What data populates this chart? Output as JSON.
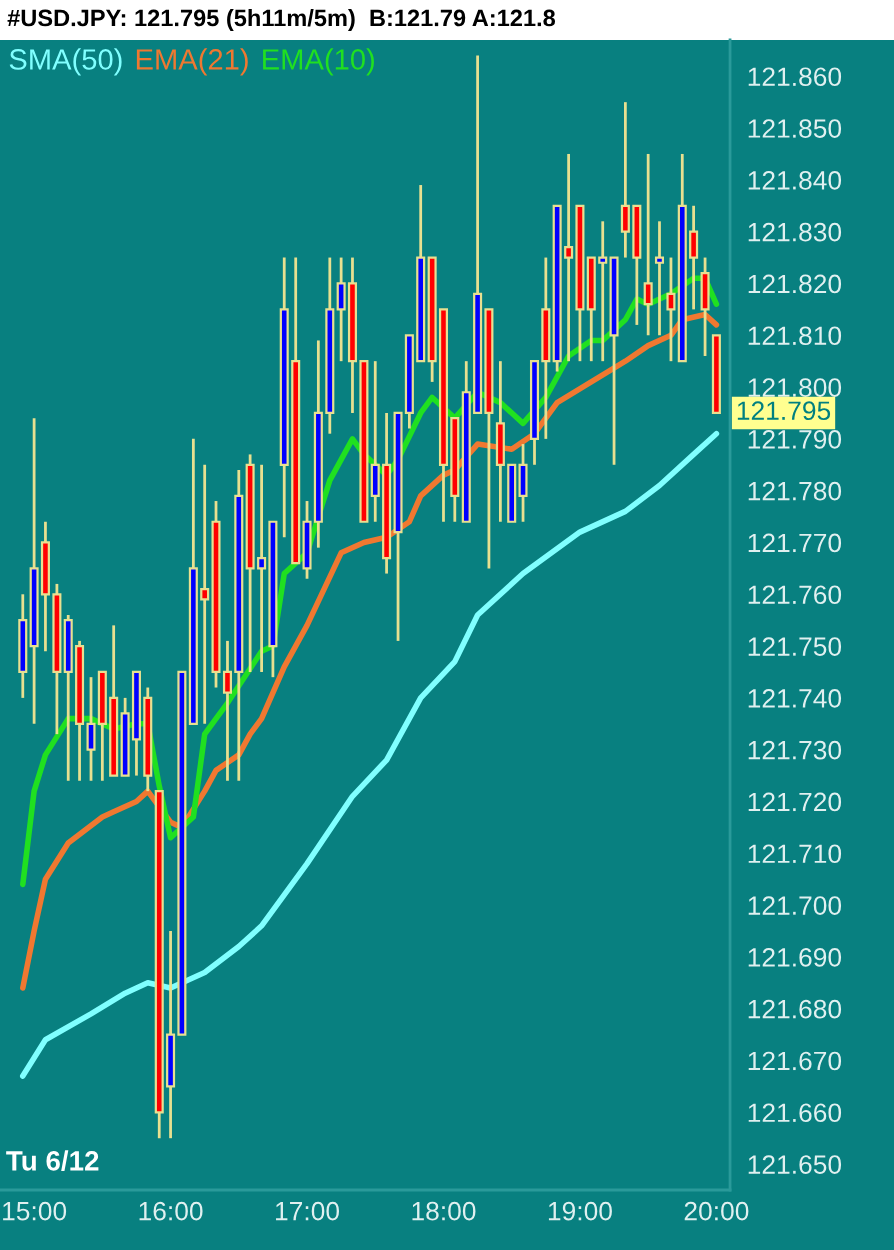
{
  "chart_data": {
    "type": "candlestick",
    "title": "#USD.JPY: 121.795 (5h11m/5m)  B:121.79 A:121.8",
    "x": [
      14.917,
      15.0,
      15.083,
      15.167,
      15.25,
      15.333,
      15.417,
      15.5,
      15.583,
      15.667,
      15.75,
      15.833,
      15.917,
      16.0,
      16.083,
      16.167,
      16.25,
      16.333,
      16.417,
      16.5,
      16.583,
      16.667,
      16.75,
      16.833,
      16.917,
      17.0,
      17.083,
      17.167,
      17.25,
      17.333,
      17.417,
      17.5,
      17.583,
      17.667,
      17.75,
      17.833,
      17.917,
      18.0,
      18.083,
      18.167,
      18.25,
      18.333,
      18.417,
      18.5,
      18.583,
      18.667,
      18.75,
      18.833,
      18.917,
      19.0,
      19.083,
      19.167,
      19.25,
      19.333,
      19.417,
      19.5,
      19.583,
      19.667,
      19.75,
      19.833,
      19.917,
      20.0
    ],
    "ohlc": [
      [
        121.745,
        121.76,
        121.74,
        121.755
      ],
      [
        121.75,
        121.794,
        121.735,
        121.765
      ],
      [
        121.77,
        121.774,
        121.749,
        121.76
      ],
      [
        121.76,
        121.762,
        121.733,
        121.745
      ],
      [
        121.745,
        121.756,
        121.724,
        121.755
      ],
      [
        121.75,
        121.751,
        121.724,
        121.735
      ],
      [
        121.73,
        121.744,
        121.724,
        121.735
      ],
      [
        121.745,
        121.745,
        121.724,
        121.735
      ],
      [
        121.74,
        121.754,
        121.725,
        121.725
      ],
      [
        121.725,
        121.74,
        121.725,
        121.737
      ],
      [
        121.732,
        121.745,
        121.725,
        121.745
      ],
      [
        121.74,
        121.742,
        121.722,
        121.725
      ],
      [
        121.722,
        121.722,
        121.655,
        121.66
      ],
      [
        121.665,
        121.695,
        121.655,
        121.675
      ],
      [
        121.675,
        121.745,
        121.675,
        121.745
      ],
      [
        121.735,
        121.79,
        121.735,
        121.765
      ],
      [
        121.761,
        121.785,
        121.735,
        121.759
      ],
      [
        121.774,
        121.778,
        121.742,
        121.745
      ],
      [
        121.745,
        121.751,
        121.724,
        121.741
      ],
      [
        121.745,
        121.784,
        121.724,
        121.779
      ],
      [
        121.785,
        121.787,
        121.745,
        121.765
      ],
      [
        121.765,
        121.785,
        121.745,
        121.767
      ],
      [
        121.75,
        121.774,
        121.744,
        121.774
      ],
      [
        121.785,
        121.825,
        121.771,
        121.815
      ],
      [
        121.805,
        121.825,
        121.766,
        121.766
      ],
      [
        121.765,
        121.778,
        121.763,
        121.774
      ],
      [
        121.774,
        121.809,
        121.769,
        121.795
      ],
      [
        121.795,
        121.825,
        121.791,
        121.815
      ],
      [
        121.815,
        121.825,
        121.805,
        121.82
      ],
      [
        121.82,
        121.825,
        121.795,
        121.805
      ],
      [
        121.805,
        121.805,
        121.774,
        121.774
      ],
      [
        121.779,
        121.805,
        121.774,
        121.785
      ],
      [
        121.785,
        121.795,
        121.764,
        121.767
      ],
      [
        121.772,
        121.795,
        121.751,
        121.795
      ],
      [
        121.795,
        121.81,
        121.792,
        121.81
      ],
      [
        121.805,
        121.839,
        121.805,
        121.825
      ],
      [
        121.825,
        121.825,
        121.801,
        121.805
      ],
      [
        121.815,
        121.815,
        121.774,
        121.785
      ],
      [
        121.794,
        121.794,
        121.774,
        121.779
      ],
      [
        121.774,
        121.805,
        121.774,
        121.799
      ],
      [
        121.795,
        121.864,
        121.795,
        121.818
      ],
      [
        121.815,
        121.815,
        121.765,
        121.795
      ],
      [
        121.793,
        121.805,
        121.774,
        121.785
      ],
      [
        121.774,
        121.785,
        121.774,
        121.785
      ],
      [
        121.779,
        121.789,
        121.774,
        121.785
      ],
      [
        121.79,
        121.805,
        121.785,
        121.805
      ],
      [
        121.815,
        121.825,
        121.79,
        121.805
      ],
      [
        121.805,
        121.835,
        121.803,
        121.835
      ],
      [
        121.827,
        121.845,
        121.805,
        121.825
      ],
      [
        121.835,
        121.835,
        121.805,
        121.815
      ],
      [
        121.825,
        121.825,
        121.805,
        121.815
      ],
      [
        121.824,
        121.832,
        121.805,
        121.825
      ],
      [
        121.81,
        121.825,
        121.785,
        121.825
      ],
      [
        121.835,
        121.855,
        121.825,
        121.83
      ],
      [
        121.835,
        121.835,
        121.812,
        121.825
      ],
      [
        121.82,
        121.845,
        121.81,
        121.816
      ],
      [
        121.824,
        121.832,
        121.81,
        121.825
      ],
      [
        121.818,
        121.825,
        121.805,
        121.815
      ],
      [
        121.805,
        121.845,
        121.805,
        121.835
      ],
      [
        121.83,
        121.835,
        121.815,
        121.825
      ],
      [
        121.822,
        121.825,
        121.806,
        121.815
      ],
      [
        121.81,
        121.81,
        121.795,
        121.795
      ]
    ],
    "colors": [
      "#0000ff",
      "#0000ff",
      "#ff0000",
      "#ff0000",
      "#0000ff",
      "#ff0000",
      "#0000ff",
      "#ff0000",
      "#ff0000",
      "#0000ff",
      "#0000ff",
      "#ff0000",
      "#ff0000",
      "#0000ff",
      "#0000ff",
      "#0000ff",
      "#ff0000",
      "#ff0000",
      "#ff0000",
      "#0000ff",
      "#ff0000",
      "#0000ff",
      "#0000ff",
      "#0000ff",
      "#ff0000",
      "#0000ff",
      "#0000ff",
      "#0000ff",
      "#0000ff",
      "#ff0000",
      "#ff0000",
      "#0000ff",
      "#ff0000",
      "#0000ff",
      "#0000ff",
      "#0000ff",
      "#ff0000",
      "#ff0000",
      "#ff0000",
      "#0000ff",
      "#0000ff",
      "#ff0000",
      "#ff0000",
      "#0000ff",
      "#0000ff",
      "#0000ff",
      "#ff0000",
      "#0000ff",
      "#ff0000",
      "#ff0000",
      "#ff0000",
      "#0000ff",
      "#0000ff",
      "#ff0000",
      "#ff0000",
      "#ff0000",
      "#0000ff",
      "#ff0000",
      "#0000ff",
      "#ff0000",
      "#ff0000",
      "#ff0000"
    ],
    "series": [
      {
        "name": "SMA(50)",
        "type": "line",
        "color": "#80ffff",
        "x": [
          14.917,
          15.083,
          15.417,
          15.667,
          15.833,
          16.0,
          16.25,
          16.5,
          16.667,
          17.0,
          17.333,
          17.583,
          17.833,
          18.083,
          18.25,
          18.583,
          19.0,
          19.333,
          19.583,
          19.833,
          20.0
        ],
        "values": [
          121.667,
          121.674,
          121.679,
          121.683,
          121.685,
          121.684,
          121.687,
          121.692,
          121.696,
          121.708,
          121.721,
          121.728,
          121.74,
          121.747,
          121.756,
          121.764,
          121.772,
          121.776,
          121.781,
          121.787,
          121.791
        ]
      },
      {
        "name": "EMA(21)",
        "type": "line",
        "color": "#f07830",
        "x": [
          14.917,
          15.0,
          15.083,
          15.25,
          15.5,
          15.583,
          15.75,
          15.833,
          16.0,
          16.083,
          16.25,
          16.333,
          16.5,
          16.583,
          16.667,
          16.833,
          17.0,
          17.25,
          17.417,
          17.583,
          17.75,
          17.833,
          18.0,
          18.083,
          18.25,
          18.5,
          18.667,
          18.833,
          19.083,
          19.333,
          19.5,
          19.667,
          19.75,
          19.917,
          20.0
        ],
        "values": [
          121.684,
          121.695,
          121.705,
          121.712,
          121.717,
          121.718,
          121.72,
          121.722,
          121.716,
          121.715,
          121.722,
          121.726,
          121.729,
          121.733,
          121.736,
          121.746,
          121.754,
          121.768,
          121.77,
          121.771,
          121.774,
          121.779,
          121.783,
          121.784,
          121.789,
          121.788,
          121.791,
          121.797,
          121.801,
          121.805,
          121.808,
          121.81,
          121.813,
          121.814,
          121.812
        ]
      },
      {
        "name": "EMA(10)",
        "type": "line",
        "color": "#20e020",
        "x": [
          14.917,
          15.0,
          15.083,
          15.25,
          15.417,
          15.583,
          15.75,
          15.833,
          15.917,
          16.0,
          16.167,
          16.25,
          16.333,
          16.417,
          16.667,
          16.75,
          16.833,
          17.0,
          17.167,
          17.333,
          17.417,
          17.583,
          17.667,
          17.833,
          17.917,
          18.083,
          18.25,
          18.417,
          18.583,
          18.75,
          18.917,
          19.083,
          19.167,
          19.333,
          19.417,
          19.5,
          19.667,
          19.833,
          19.917,
          20.0
        ],
        "values": [
          121.704,
          121.722,
          121.729,
          121.736,
          121.736,
          121.734,
          121.735,
          121.735,
          121.723,
          121.713,
          121.717,
          121.733,
          121.736,
          121.739,
          121.749,
          121.75,
          121.764,
          121.768,
          121.782,
          121.79,
          121.787,
          121.783,
          121.786,
          121.795,
          121.798,
          121.794,
          121.799,
          121.797,
          121.793,
          121.798,
          121.806,
          121.809,
          121.809,
          121.813,
          121.817,
          121.816,
          121.818,
          121.821,
          121.821,
          121.816
        ]
      }
    ],
    "legend": "top left",
    "xlim": [
      14.75,
      20.1
    ],
    "xticks": [
      {
        "value": 15,
        "label": "15:00"
      },
      {
        "value": 16,
        "label": "16:00"
      },
      {
        "value": 17,
        "label": "17:00"
      },
      {
        "value": 18,
        "label": "18:00"
      },
      {
        "value": 19,
        "label": "19:00"
      },
      {
        "value": 20,
        "label": "20:00"
      }
    ],
    "ylim": [
      121.645,
      121.867
    ],
    "yticks": [
      {
        "value": 121.65,
        "label": "121.650"
      },
      {
        "value": 121.66,
        "label": "121.660"
      },
      {
        "value": 121.67,
        "label": "121.670"
      },
      {
        "value": 121.68,
        "label": "121.680"
      },
      {
        "value": 121.69,
        "label": "121.690"
      },
      {
        "value": 121.7,
        "label": "121.700"
      },
      {
        "value": 121.71,
        "label": "121.710"
      },
      {
        "value": 121.72,
        "label": "121.720"
      },
      {
        "value": 121.73,
        "label": "121.730"
      },
      {
        "value": 121.74,
        "label": "121.740"
      },
      {
        "value": 121.75,
        "label": "121.750"
      },
      {
        "value": 121.76,
        "label": "121.760"
      },
      {
        "value": 121.77,
        "label": "121.770"
      },
      {
        "value": 121.78,
        "label": "121.780"
      },
      {
        "value": 121.79,
        "label": "121.790"
      },
      {
        "value": 121.8,
        "label": "121.800"
      },
      {
        "value": 121.81,
        "label": "121.810"
      },
      {
        "value": 121.82,
        "label": "121.820"
      },
      {
        "value": 121.83,
        "label": "121.830"
      },
      {
        "value": 121.84,
        "label": "121.840"
      },
      {
        "value": 121.85,
        "label": "121.850"
      },
      {
        "value": 121.86,
        "label": "121.860"
      }
    ],
    "annotations": [
      "Tu 6/12",
      {
        "text": "121.795",
        "x": 20.0,
        "y": 121.795
      }
    ]
  }
}
